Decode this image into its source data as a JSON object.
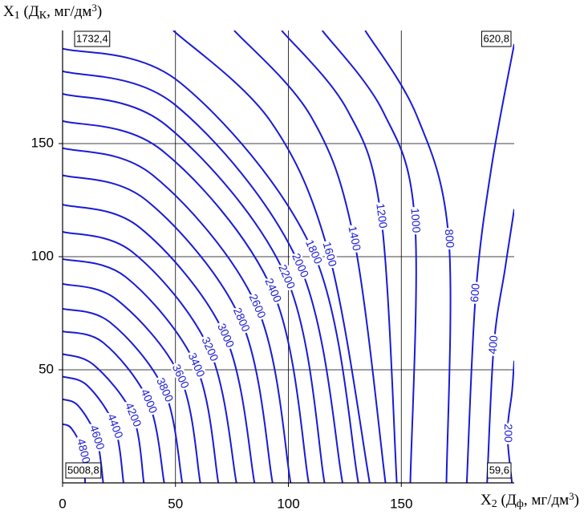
{
  "chart_data": {
    "type": "contour",
    "xlabel": [
      "X",
      "2",
      " (Д",
      "ф",
      ", мг/дм",
      "3",
      ")"
    ],
    "ylabel": [
      "X",
      "1",
      " (Д",
      "К",
      ", мг/дм",
      "3",
      ")"
    ],
    "xlim": [
      0,
      200
    ],
    "ylim": [
      0,
      200
    ],
    "xticks": [
      0,
      50,
      100,
      150
    ],
    "yticks": [
      50,
      100,
      150
    ],
    "grid": true,
    "color": "#1a1ad6",
    "annotations": [
      "1732,4",
      "620,8",
      "5008,8",
      "59,6"
    ],
    "contours": [
      {
        "level": 200,
        "x": [
          200,
          199,
          197,
          199
        ],
        "y": [
          54,
          40,
          22,
          0
        ]
      },
      {
        "level": 400,
        "x": [
          200,
          196,
          191,
          188
        ],
        "y": [
          121,
          95,
          61,
          0
        ]
      },
      {
        "level": 600,
        "x": [
          200,
          190,
          183,
          179
        ],
        "y": [
          194,
          140,
          84,
          0
        ]
      },
      {
        "level": 800,
        "x": [
          134,
          157,
          171,
          170
        ],
        "y": [
          200,
          162,
          108,
          0
        ]
      },
      {
        "level": 1000,
        "x": [
          115,
          142,
          156,
          154
        ],
        "y": [
          200,
          164,
          116,
          0
        ]
      },
      {
        "level": 1200,
        "x": [
          97,
          126,
          141,
          148
        ],
        "y": [
          200,
          165,
          118,
          0
        ]
      },
      {
        "level": 1400,
        "x": [
          76,
          110,
          129,
          143
        ],
        "y": [
          200,
          162,
          108,
          0
        ]
      },
      {
        "level": 1600,
        "x": [
          49,
          92,
          118,
          136
        ],
        "y": [
          200,
          160,
          101,
          0
        ]
      },
      {
        "level": 1800,
        "x": [
          0,
          52,
          111,
          131
        ],
        "y": [
          192,
          177,
          102,
          0
        ]
      },
      {
        "level": 2000,
        "x": [
          0,
          50,
          105,
          124
        ],
        "y": [
          182,
          167,
          96,
          0
        ]
      },
      {
        "level": 2200,
        "x": [
          0,
          46,
          99,
          116
        ],
        "y": [
          172,
          158,
          91,
          0
        ]
      },
      {
        "level": 2400,
        "x": [
          0,
          44,
          93,
          109
        ],
        "y": [
          160,
          147,
          85,
          0
        ]
      },
      {
        "level": 2600,
        "x": [
          0,
          40,
          86,
          101
        ],
        "y": [
          148,
          136,
          78,
          0
        ]
      },
      {
        "level": 2800,
        "x": [
          0,
          37,
          79,
          93
        ],
        "y": [
          136,
          125,
          72,
          0
        ]
      },
      {
        "level": 3000,
        "x": [
          0,
          34,
          72,
          85
        ],
        "y": [
          123,
          113,
          65,
          0
        ]
      },
      {
        "level": 3200,
        "x": [
          0,
          31,
          65,
          77
        ],
        "y": [
          111,
          102,
          59,
          0
        ]
      },
      {
        "level": 3400,
        "x": [
          0,
          28,
          59,
          69
        ],
        "y": [
          99,
          91,
          52,
          0
        ]
      },
      {
        "level": 3600,
        "x": [
          0,
          24,
          52,
          61
        ],
        "y": [
          88,
          81,
          47,
          0
        ]
      },
      {
        "level": 3800,
        "x": [
          0,
          21,
          45,
          53
        ],
        "y": [
          77,
          71,
          41,
          0
        ]
      },
      {
        "level": 4000,
        "x": [
          0,
          18,
          38,
          45
        ],
        "y": [
          67,
          62,
          36,
          0
        ]
      },
      {
        "level": 4200,
        "x": [
          0,
          14,
          31,
          36
        ],
        "y": [
          57,
          52,
          30,
          0
        ]
      },
      {
        "level": 4400,
        "x": [
          0,
          11,
          23,
          27
        ],
        "y": [
          47,
          43,
          25,
          0
        ]
      },
      {
        "level": 4600,
        "x": [
          0,
          7,
          15,
          18
        ],
        "y": [
          37,
          34,
          20,
          0
        ]
      },
      {
        "level": 4800,
        "x": [
          0,
          4,
          9,
          10
        ],
        "y": [
          26,
          24,
          14,
          0
        ]
      }
    ]
  }
}
